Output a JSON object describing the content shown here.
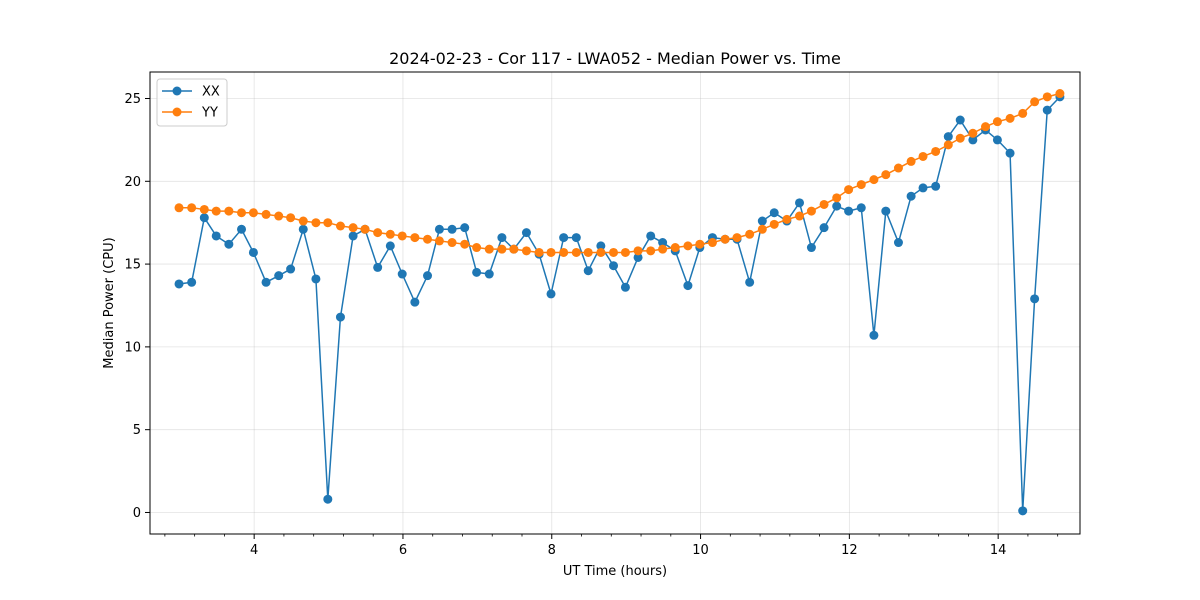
{
  "chart_data": {
    "type": "line",
    "title": "2024-02-23 - Cor 117 - LWA052 - Median Power vs. Time",
    "xlabel": "UT Time (hours)",
    "ylabel": "Median Power (CPU)",
    "xlim": [
      2.6,
      15.1
    ],
    "ylim": [
      -1.3,
      26.6
    ],
    "xticks": [
      4,
      6,
      8,
      10,
      12,
      14
    ],
    "yticks": [
      0,
      5,
      10,
      15,
      20,
      25
    ],
    "xminor_step": 0.4,
    "grid": true,
    "legend_position": "upper-left",
    "x": [
      2.99,
      3.16,
      3.33,
      3.49,
      3.66,
      3.83,
      3.99,
      4.16,
      4.33,
      4.49,
      4.66,
      4.83,
      4.99,
      5.16,
      5.33,
      5.49,
      5.66,
      5.83,
      5.99,
      6.16,
      6.33,
      6.49,
      6.66,
      6.83,
      6.99,
      7.16,
      7.33,
      7.49,
      7.66,
      7.83,
      7.99,
      8.16,
      8.33,
      8.49,
      8.66,
      8.83,
      8.99,
      9.16,
      9.33,
      9.49,
      9.66,
      9.83,
      9.99,
      10.16,
      10.33,
      10.49,
      10.66,
      10.83,
      10.99,
      11.16,
      11.33,
      11.49,
      11.66,
      11.83,
      11.99,
      12.16,
      12.33,
      12.49,
      12.66,
      12.83,
      12.99,
      13.16,
      13.33,
      13.49,
      13.66,
      13.83,
      13.99,
      14.16,
      14.33,
      14.49,
      14.66,
      14.83
    ],
    "series": [
      {
        "name": "XX",
        "color": "#1f77b4",
        "values": [
          13.8,
          13.9,
          17.8,
          16.7,
          16.2,
          17.1,
          15.7,
          13.9,
          14.3,
          14.7,
          17.1,
          14.1,
          0.8,
          11.8,
          16.7,
          17.1,
          14.8,
          16.1,
          14.4,
          12.7,
          14.3,
          17.1,
          17.1,
          17.2,
          14.5,
          14.4,
          16.6,
          15.9,
          16.9,
          15.6,
          13.2,
          16.6,
          16.6,
          14.6,
          16.1,
          14.9,
          13.6,
          15.4,
          16.7,
          16.3,
          15.8,
          13.7,
          16.0,
          16.6,
          16.5,
          16.5,
          13.9,
          17.6,
          18.1,
          17.6,
          18.7,
          16.0,
          17.2,
          18.5,
          18.2,
          18.4,
          10.7,
          18.2,
          16.3,
          19.1,
          19.6,
          19.7,
          22.7,
          23.7,
          22.5,
          23.1,
          22.5,
          21.7,
          0.1,
          12.9,
          24.3,
          25.1
        ]
      },
      {
        "name": "YY",
        "color": "#ff7f0e",
        "values": [
          18.4,
          18.4,
          18.3,
          18.2,
          18.2,
          18.1,
          18.1,
          18.0,
          17.9,
          17.8,
          17.6,
          17.5,
          17.5,
          17.3,
          17.2,
          17.1,
          16.9,
          16.8,
          16.7,
          16.6,
          16.5,
          16.4,
          16.3,
          16.2,
          16.0,
          15.9,
          15.9,
          15.9,
          15.8,
          15.7,
          15.7,
          15.7,
          15.7,
          15.7,
          15.7,
          15.7,
          15.7,
          15.8,
          15.8,
          15.9,
          16.0,
          16.1,
          16.2,
          16.3,
          16.5,
          16.6,
          16.8,
          17.1,
          17.4,
          17.7,
          17.9,
          18.2,
          18.6,
          19.0,
          19.5,
          19.8,
          20.1,
          20.4,
          20.8,
          21.2,
          21.5,
          21.8,
          22.2,
          22.6,
          22.9,
          23.3,
          23.6,
          23.8,
          24.1,
          24.8,
          25.1,
          25.3
        ]
      }
    ]
  }
}
